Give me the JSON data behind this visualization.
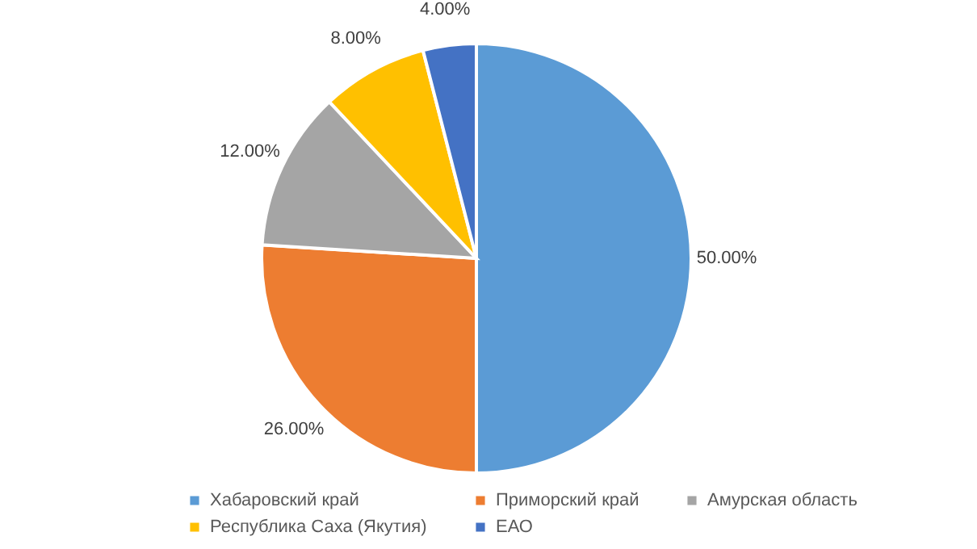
{
  "chart_data": {
    "type": "pie",
    "categories": [
      "Хабаровский край",
      "Приморский край",
      "Амурская область",
      "Республика Саха (Якутия)",
      "ЕАО"
    ],
    "values": [
      50,
      26,
      12,
      8,
      4
    ],
    "colors": [
      "#5b9bd5",
      "#ed7d31",
      "#a5a5a5",
      "#ffc000",
      "#4472c4"
    ],
    "value_labels": [
      "50.00%",
      "26.00%",
      "12.00%",
      "8.00%",
      "4.00%"
    ],
    "legend": "bottom"
  }
}
